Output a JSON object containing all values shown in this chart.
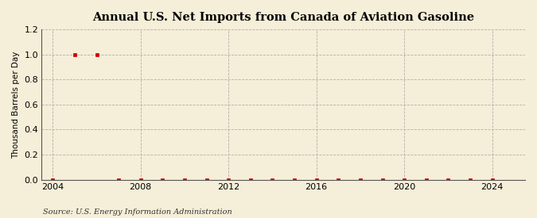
{
  "title": "Annual U.S. Net Imports from Canada of Aviation Gasoline",
  "ylabel": "Thousand Barrels per Day",
  "source": "Source: U.S. Energy Information Administration",
  "background_color": "#f5eed8",
  "plot_background_color": "#f5eed8",
  "marker_color": "#cc0000",
  "grid_color": "#aaaaaa",
  "ylim": [
    0.0,
    1.2
  ],
  "yticks": [
    0.0,
    0.2,
    0.4,
    0.6,
    0.8,
    1.0,
    1.2
  ],
  "xlim": [
    2003.5,
    2025.5
  ],
  "xticks": [
    2004,
    2008,
    2012,
    2016,
    2020,
    2024
  ],
  "data": {
    "2004": 0.0,
    "2005": 1.0,
    "2006": 1.0,
    "2007": 0.0,
    "2008": 0.0,
    "2009": 0.0,
    "2010": 0.0,
    "2011": 0.0,
    "2012": 0.0,
    "2013": 0.0,
    "2014": 0.0,
    "2015": 0.0,
    "2016": 0.0,
    "2017": 0.0,
    "2018": 0.0,
    "2019": 0.0,
    "2020": 0.0,
    "2021": 0.0,
    "2022": 0.0,
    "2023": 0.0,
    "2024": 0.0
  }
}
